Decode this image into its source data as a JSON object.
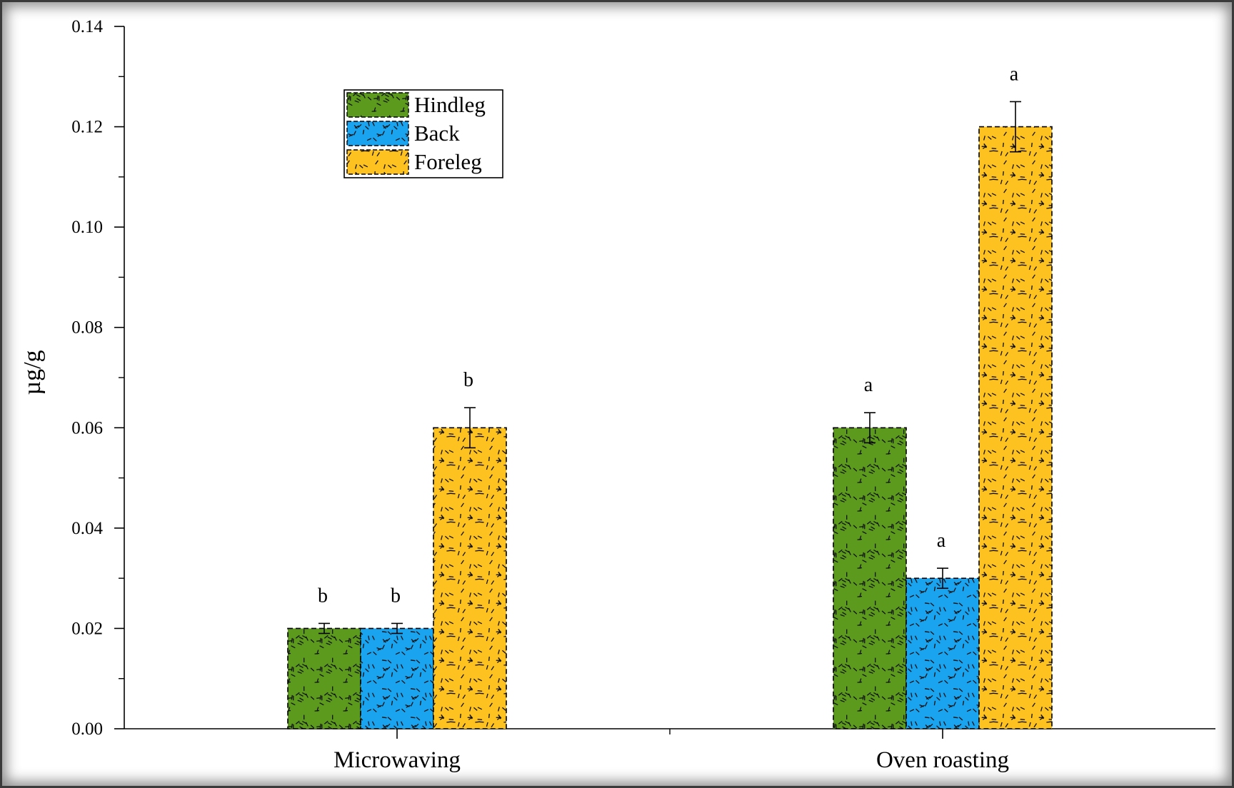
{
  "chart_data": {
    "type": "bar",
    "title": "",
    "xlabel": "",
    "ylabel": "µg/g",
    "ylim": [
      0,
      0.14
    ],
    "y_major_ticks": [
      "0.00",
      "0.02",
      "0.04",
      "0.06",
      "0.08",
      "0.10",
      "0.12",
      "0.14"
    ],
    "categories": [
      "Microwaving",
      "Oven roasting"
    ],
    "series": [
      {
        "name": "Hindleg",
        "color": "#5b9a1d",
        "values": [
          0.02,
          0.06
        ],
        "errors": [
          0.001,
          0.003
        ],
        "sig": [
          "b",
          "a"
        ]
      },
      {
        "name": "Back",
        "color": "#1aa3ee",
        "values": [
          0.02,
          0.03
        ],
        "errors": [
          0.001,
          0.002
        ],
        "sig": [
          "b",
          "a"
        ]
      },
      {
        "name": "Foreleg",
        "color": "#fdc21f",
        "values": [
          0.06,
          0.12
        ],
        "errors": [
          0.004,
          0.005
        ],
        "sig": [
          "b",
          "a"
        ]
      }
    ],
    "grid": false,
    "legend_position": "top-left",
    "pattern": "dashes"
  }
}
